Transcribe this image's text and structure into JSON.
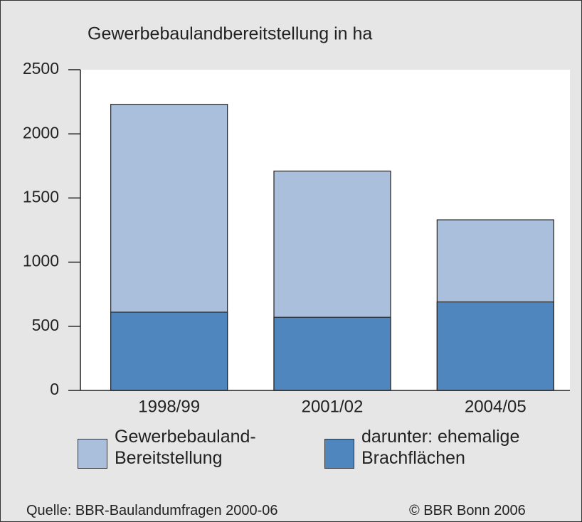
{
  "chart_data": {
    "type": "bar",
    "title": "Gewerbebauland­bereitstellung in ha",
    "categories": [
      "1998/99",
      "2001/02",
      "2004/05"
    ],
    "series": [
      {
        "name": "Gewerbebauland-Bereitstellung",
        "color": "#a9bfdc",
        "values": [
          2230,
          1710,
          1330
        ]
      },
      {
        "name": "darunter: ehemalige Brachflächen",
        "color": "#4f86be",
        "values": [
          610,
          570,
          690
        ]
      }
    ],
    "ylim": [
      0,
      2500
    ],
    "yticks": [
      0,
      500,
      1000,
      1500,
      2000,
      2500
    ],
    "source": "Quelle: BBR-Baulandumfragen 2000-06",
    "copyright": "© BBR Bonn 2006"
  }
}
